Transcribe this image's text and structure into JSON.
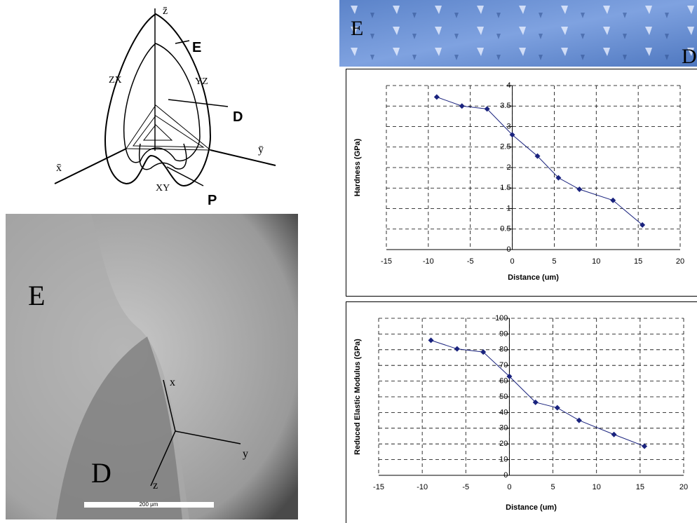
{
  "diagram": {
    "labels": {
      "z_axis": "z̄",
      "enamel": "E",
      "zx_plane": "ZX",
      "yz_plane": "YZ",
      "dentin": "D",
      "y_axis": "ȳ",
      "x_axis": "x̄",
      "xy_plane": "XY",
      "pulp": "P"
    }
  },
  "afm_strip": {
    "left_label": "E",
    "right_label": "D"
  },
  "micrograph": {
    "enamel": "E",
    "dentin": "D",
    "x_axis": "x",
    "y_axis": "y",
    "z_axis": "z",
    "scale_bar": "200 μm"
  },
  "chart_data": [
    {
      "type": "line",
      "y_label": "Hardness (GPa)",
      "x_label": "Distance (um)",
      "x": [
        -9,
        -6,
        -3,
        0,
        3,
        5.5,
        8,
        12,
        15.5
      ],
      "series": [
        {
          "color": "#1a237e",
          "values": [
            3.72,
            3.5,
            3.43,
            2.8,
            2.28,
            1.75,
            1.47,
            1.2,
            0.6
          ]
        }
      ],
      "xlim": [
        -15,
        20
      ],
      "xticks": [
        -15,
        -10,
        -5,
        0,
        5,
        10,
        15,
        20
      ],
      "ylim": [
        0,
        4
      ],
      "yticks": [
        0,
        0.5,
        1,
        1.5,
        2,
        2.5,
        3,
        3.5,
        4
      ],
      "grid": true
    },
    {
      "type": "line",
      "y_label": "Reduced Elastic Modulus (GPa)",
      "x_label": "Distance (um)",
      "x": [
        -9,
        -6,
        -3,
        0,
        3,
        5.5,
        8,
        12,
        15.5
      ],
      "series": [
        {
          "color": "#1a237e",
          "values": [
            86,
            80.5,
            78.5,
            63,
            46.5,
            43,
            35,
            26,
            18.5
          ]
        }
      ],
      "xlim": [
        -15,
        20
      ],
      "xticks": [
        -15,
        -10,
        -5,
        0,
        5,
        10,
        15,
        20
      ],
      "ylim": [
        0,
        100
      ],
      "yticks": [
        0,
        10,
        20,
        30,
        40,
        50,
        60,
        70,
        80,
        90,
        100
      ],
      "grid": true
    }
  ]
}
